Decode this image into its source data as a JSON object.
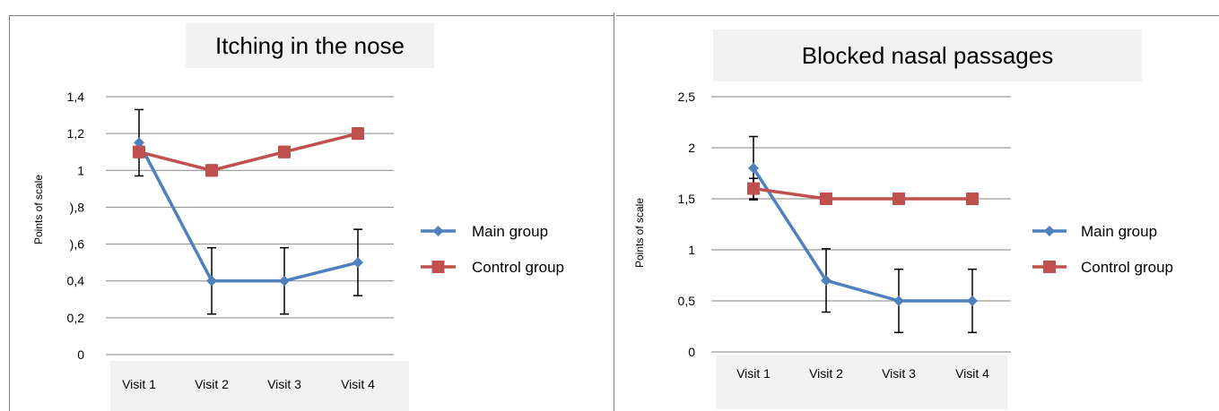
{
  "colors": {
    "main": "#4f81bd",
    "control": "#c0504d",
    "grid": "#868686",
    "error": "#000000"
  },
  "chart_data": [
    {
      "type": "line",
      "title": "Itching in the nose",
      "ylabel": "Points of scale",
      "xlabel": "",
      "categories": [
        "Visit 1",
        "Visit 2",
        "Visit 3",
        "Visit 4"
      ],
      "yticks": [
        "0",
        "0,2",
        "0,4",
        "),6",
        "),8",
        "1",
        "1,2",
        "1,4"
      ],
      "ylim": [
        0,
        1.4
      ],
      "ystep": 0.2,
      "grid": true,
      "legend": "right",
      "series": [
        {
          "name": "Main group",
          "marker": "diamond",
          "values": [
            1.15,
            0.4,
            0.4,
            0.5
          ],
          "errors": [
            0.18,
            0.18,
            0.18,
            0.18
          ]
        },
        {
          "name": "Control group",
          "marker": "square",
          "values": [
            1.1,
            1.0,
            1.1,
            1.2
          ],
          "errors": [
            0.03,
            0.03,
            0.03,
            0.03
          ]
        }
      ]
    },
    {
      "type": "line",
      "title": "Blocked nasal passages",
      "ylabel": "Points of scale",
      "xlabel": "",
      "categories": [
        "Visit 1",
        "Visit 2",
        "Visit 3",
        "Visit 4"
      ],
      "yticks": [
        "0",
        "0,5",
        "1",
        "1,5",
        "2",
        "2,5"
      ],
      "ylim": [
        0,
        2.5
      ],
      "ystep": 0.5,
      "grid": true,
      "legend": "right",
      "series": [
        {
          "name": "Main group",
          "marker": "diamond",
          "values": [
            1.8,
            0.7,
            0.5,
            0.5
          ],
          "errors": [
            0.31,
            0.31,
            0.31,
            0.31
          ]
        },
        {
          "name": "Control group",
          "marker": "square",
          "values": [
            1.6,
            1.5,
            1.5,
            1.5
          ],
          "errors": [
            0.1,
            0.0,
            0.0,
            0.0
          ]
        }
      ]
    }
  ]
}
